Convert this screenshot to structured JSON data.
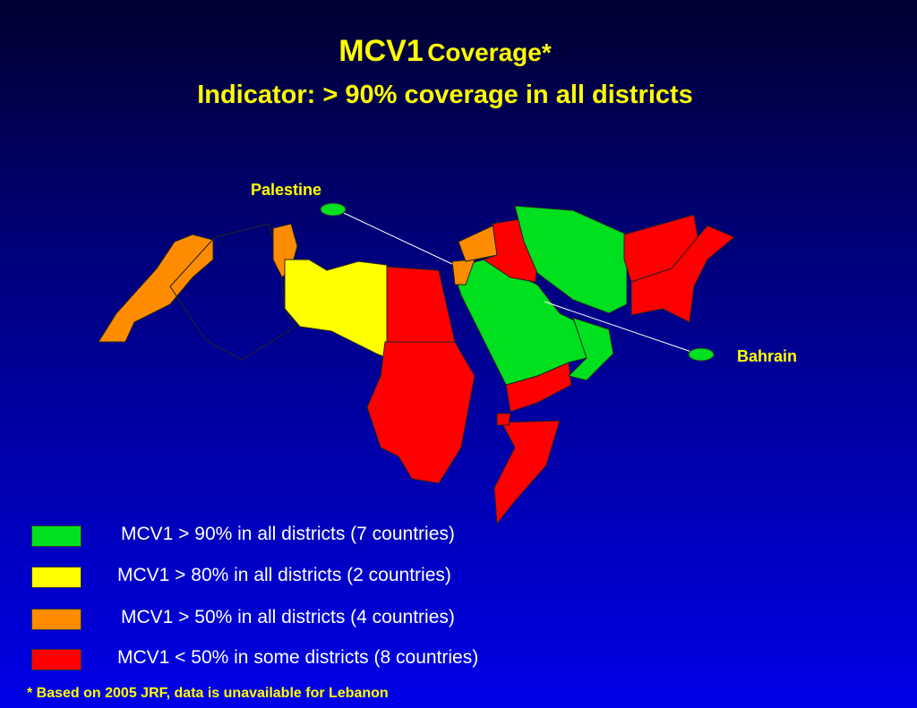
{
  "title": {
    "main": "MCV1",
    "rest": "Coverage*"
  },
  "subtitle": "Indicator: > 90% coverage in all districts",
  "callouts": {
    "palestine": "Palestine",
    "bahrain": "Bahrain"
  },
  "legend": [
    {
      "label": "MCV1 > 90% in all districts (7 countries)",
      "color": "#00e01e"
    },
    {
      "label": "MCV1 > 80% in all districts (2 countries)",
      "color": "#ffff00"
    },
    {
      "label": "MCV1 > 50% in all districts (4 countries)",
      "color": "#ff8c00"
    },
    {
      "label": "MCV1 < 50% in some districts (8 countries)",
      "color": "#ff0000"
    }
  ],
  "footnote": "* Based on 2005 JRF, data is unavailable for Lebanon"
}
